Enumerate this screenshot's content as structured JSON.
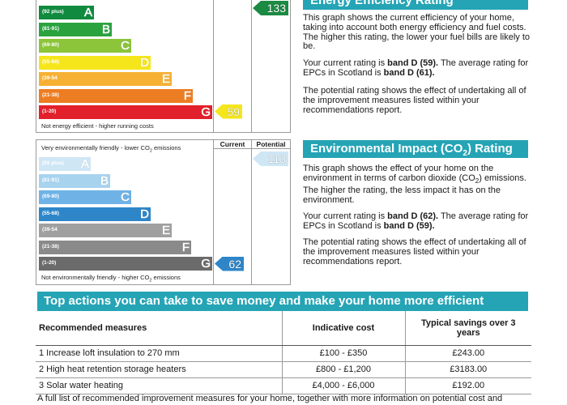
{
  "energy_efficiency": {
    "title": "Energy Efficiency Rating",
    "potential_value": "133",
    "current_value": "59",
    "bottom_caption": "Not energy efficient - higher running costs",
    "bands": [
      {
        "range": "(92 plus)",
        "letter": "A",
        "color": "#0f8a3e"
      },
      {
        "range": "(81-91)",
        "letter": "B",
        "color": "#2aa33f"
      },
      {
        "range": "(69-80)",
        "letter": "C",
        "color": "#8cc43a"
      },
      {
        "range": "(55-68)",
        "letter": "D",
        "color": "#f5e61c"
      },
      {
        "range": "(39-54",
        "letter": "E",
        "color": "#f6b134"
      },
      {
        "range": "(21-38)",
        "letter": "F",
        "color": "#ec7d22"
      },
      {
        "range": "(1-20)",
        "letter": "G",
        "color": "#e2202b"
      }
    ],
    "current_color": "#f5e61c",
    "potential_color": "#1b8a43",
    "desc_1": "This graph shows the current efficiency of your home, taking into account both energy efficiency and fuel costs. The higher this rating, the lower your fuel bills are likely to be.",
    "desc_2_pre": "Your current rating is ",
    "desc_2_bold1": "band D (59).",
    "desc_2_mid": " The average rating for EPCs in Scotland is ",
    "desc_2_bold2": "band D (61).",
    "desc_3": "The potential rating shows the effect of undertaking all of the improvement measures listed within your recommendations report."
  },
  "environmental_impact": {
    "title_pre": "Environmental Impact (CO",
    "title_sub": "2",
    "title_post": ") Rating",
    "col_current": "Current",
    "col_potential": "Potential",
    "top_caption_pre": "Very environmentally friendly - lower CO",
    "top_caption_sub": "2",
    "top_caption_post": " emissions",
    "bottom_caption_pre": "Not environmentally friendly - higher CO",
    "bottom_caption_sub": "2",
    "bottom_caption_post": " emissions",
    "current_value": "62",
    "potential_value": "113",
    "bands": [
      {
        "range": "(92 plus)",
        "letter": "A",
        "color": "#cfe6f5"
      },
      {
        "range": "(81-91)",
        "letter": "B",
        "color": "#a8d3ef"
      },
      {
        "range": "(69-80)",
        "letter": "C",
        "color": "#6fb3e6"
      },
      {
        "range": "(55-68)",
        "letter": "D",
        "color": "#2e86c9"
      },
      {
        "range": "(39-54",
        "letter": "E",
        "color": "#a0a0a0"
      },
      {
        "range": "(21-38)",
        "letter": "F",
        "color": "#8a8a8a"
      },
      {
        "range": "(1-20)",
        "letter": "G",
        "color": "#6b6b6b"
      }
    ],
    "current_color": "#2e86c9",
    "potential_color": "#cfe6f5",
    "desc_1_pre": "This graph shows the effect of your home on the environment in terms of carbon dioxide (CO",
    "desc_1_sub": "2",
    "desc_1_post": ") emissions. The higher the rating, the less impact it has on the environment.",
    "desc_2_pre": "Your current rating is ",
    "desc_2_bold1": "band D (62).",
    "desc_2_mid": " The average rating for EPCs in Scotland is ",
    "desc_2_bold2": "band D (59).",
    "desc_3": "The potential rating shows the effect of undertaking all of the improvement measures listed within your recommendations report."
  },
  "actions": {
    "title": "Top actions you can take to save money and make your home more efficient",
    "headers": [
      "Recommended measures",
      "Indicative cost",
      "Typical savings over 3 years"
    ],
    "rows": [
      [
        "1 Increase loft insulation to 270 mm",
        "£100 - £350",
        "£243.00"
      ],
      [
        "2 High heat retention storage heaters",
        "£800 - £1,200",
        "£3183.00"
      ],
      [
        "3 Solar water heating",
        "£4,000 - £6,000",
        "£192.00"
      ]
    ],
    "footer": "A full list of recommended improvement measures for your home, together with more information on potential cost and"
  }
}
